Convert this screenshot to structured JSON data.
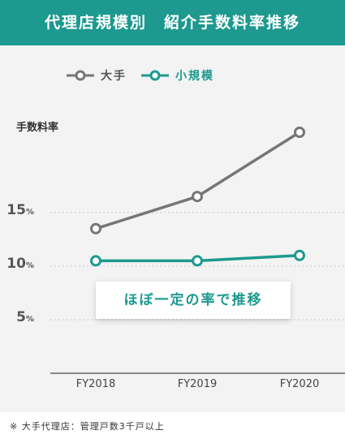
{
  "header": {
    "title": "代理店規模別　紹介手数料率推移"
  },
  "chart_data": {
    "type": "line",
    "title": "代理店規模別　紹介手数料率推移",
    "ylabel": "手数料率",
    "xlabel": "",
    "categories": [
      "FY2018",
      "FY2019",
      "FY2020"
    ],
    "series": [
      {
        "name": "大手",
        "color": "#767676",
        "values": [
          13.5,
          16.5,
          22.5
        ]
      },
      {
        "name": "小規模",
        "color": "#1d998f",
        "values": [
          10.5,
          10.5,
          11.0
        ]
      }
    ],
    "yticks": [
      5,
      10,
      15
    ],
    "tick_unit": "%",
    "ylim": [
      0,
      24
    ],
    "grid": true,
    "legend_position": "top",
    "annotation": "ほぼ一定の率で推移"
  },
  "footnote": "※ 大手代理店：管理戸数3千戸以上"
}
